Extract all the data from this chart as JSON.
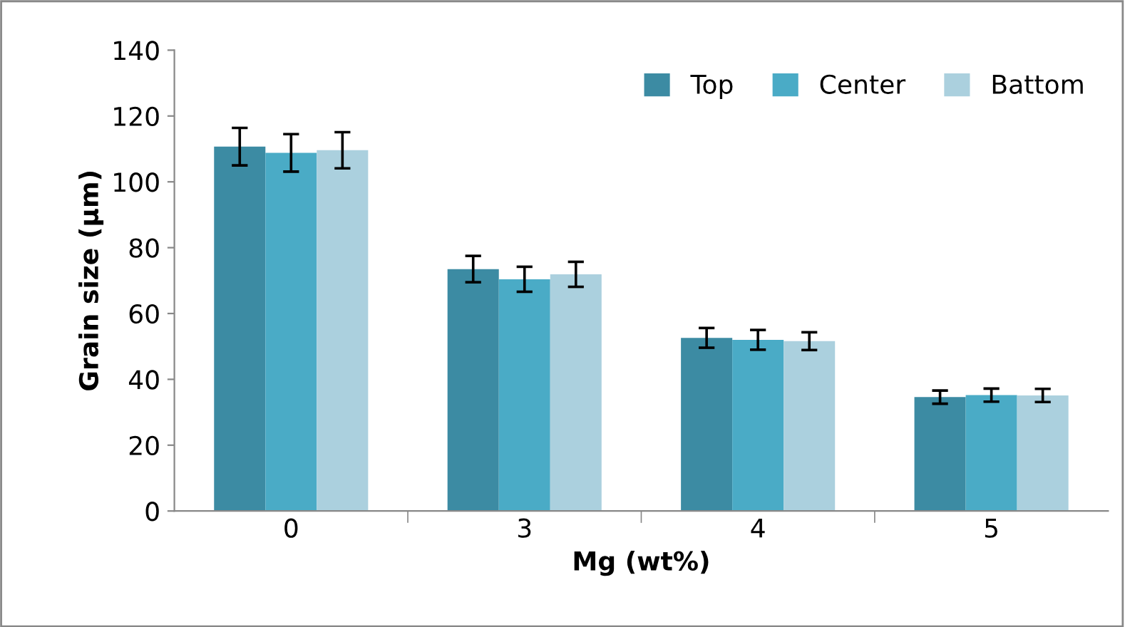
{
  "chart_data": {
    "type": "bar",
    "xlabel": "Mg (wt%)",
    "ylabel": "Grain size (µm)",
    "categories": [
      "0",
      "3",
      "4",
      "5"
    ],
    "series": [
      {
        "name": "Top",
        "color": "#3c8ba3",
        "values": [
          110.7,
          73.5,
          52.6,
          34.6
        ],
        "errors": [
          5.7,
          4,
          3,
          2
        ]
      },
      {
        "name": "Center",
        "color": "#4aabc6",
        "values": [
          108.8,
          70.4,
          52,
          35.2
        ],
        "errors": [
          5.7,
          3.8,
          3,
          2
        ]
      },
      {
        "name": "Battom",
        "color": "#abd0de",
        "values": [
          109.6,
          71.9,
          51.6,
          35.1
        ],
        "errors": [
          5.5,
          3.8,
          2.7,
          2
        ]
      }
    ],
    "ylim": [
      0,
      140
    ],
    "yticks": [
      0,
      20,
      40,
      60,
      80,
      100,
      120,
      140
    ],
    "grid": false,
    "legend": "top right"
  }
}
